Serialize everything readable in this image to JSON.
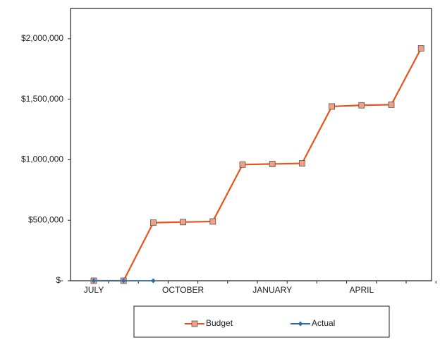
{
  "chart_data": {
    "type": "line",
    "categories": [
      "JULY",
      null,
      null,
      "OCTOBER",
      null,
      null,
      "JANUARY",
      null,
      null,
      "APRIL",
      null,
      null
    ],
    "series": [
      {
        "name": "Budget",
        "color": "#e8541c",
        "marker_color": "#f2a088",
        "values": [
          0,
          0,
          480000,
          485000,
          490000,
          960000,
          965000,
          970000,
          1440000,
          1450000,
          1455000,
          1920000
        ]
      },
      {
        "name": "Actual",
        "color": "#2e6fa7",
        "values": [
          0,
          0,
          0,
          null,
          null,
          null,
          null,
          null,
          null,
          null,
          null,
          null
        ]
      }
    ],
    "ylim": [
      0,
      2250000
    ],
    "yticks": [
      {
        "value": 0,
        "label": "$-"
      },
      {
        "value": 500000,
        "label": "$500,000"
      },
      {
        "value": 1000000,
        "label": "$1,000,000"
      },
      {
        "value": 1500000,
        "label": "$1,500,000"
      },
      {
        "value": 2000000,
        "label": "$2,000,000"
      }
    ],
    "grid": false,
    "legend": "bottom"
  }
}
